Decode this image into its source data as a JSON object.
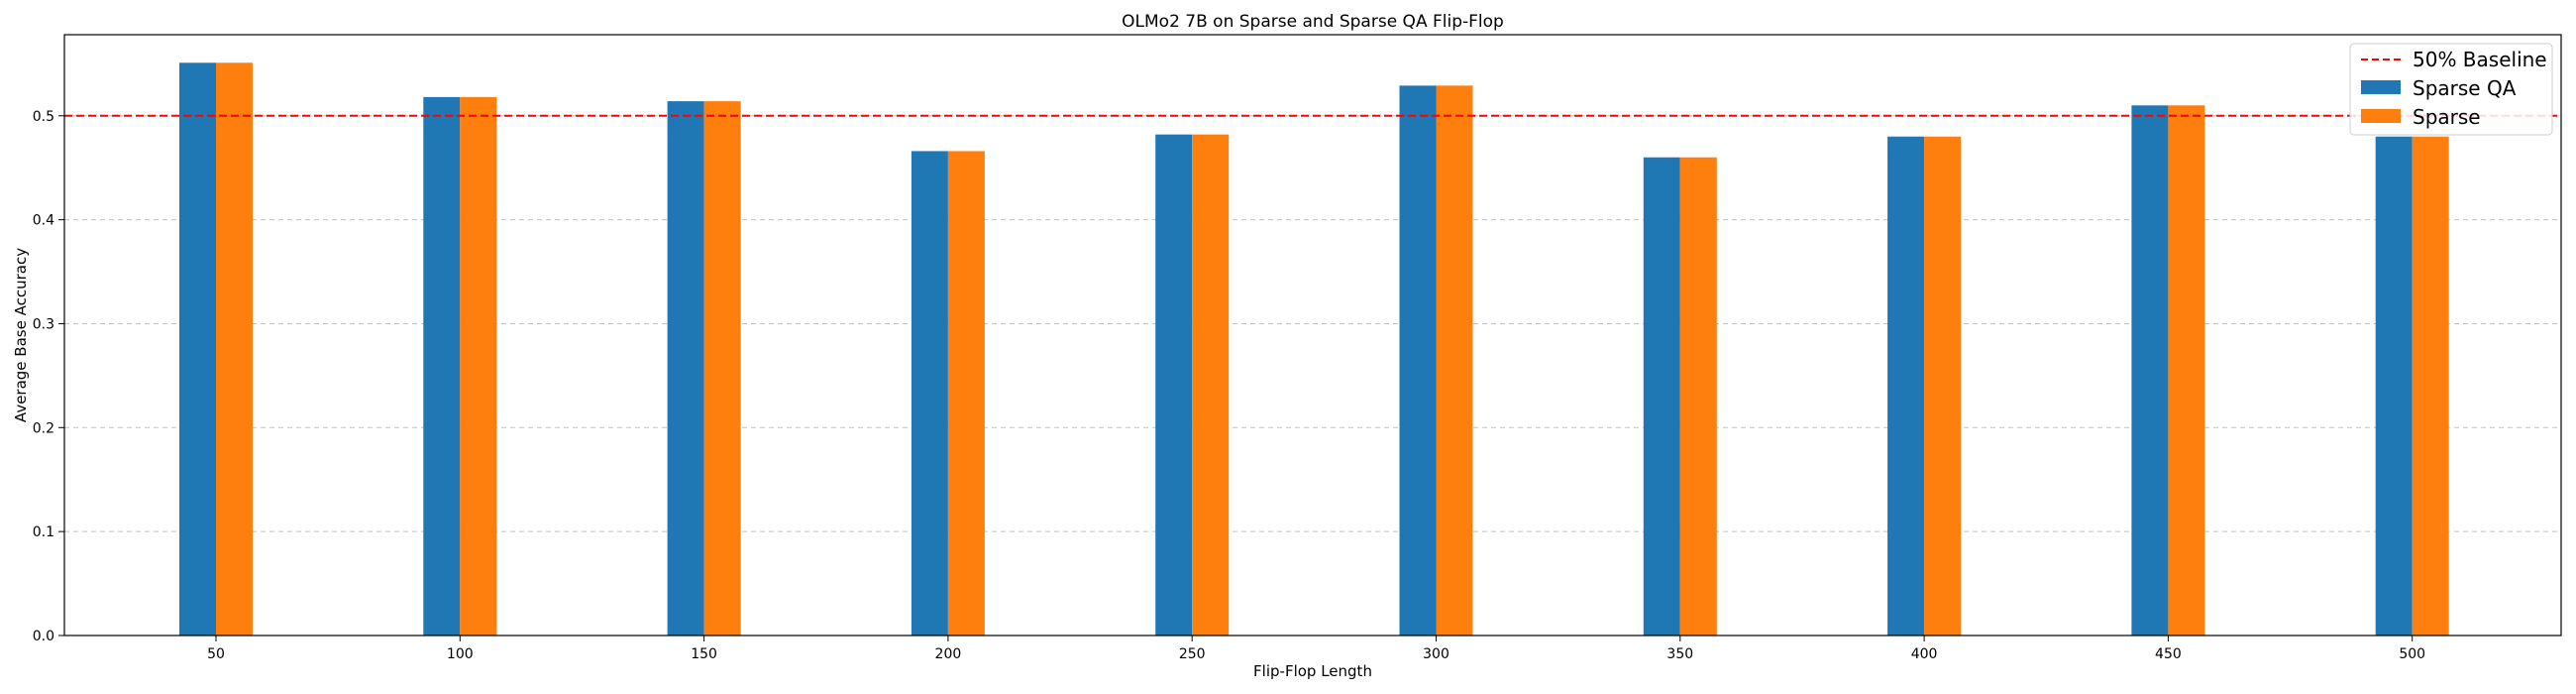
{
  "chart_data": {
    "type": "bar",
    "title": "OLMo2 7B on Sparse and Sparse QA Flip-Flop",
    "xlabel": "Flip-Flop Length",
    "ylabel": "Average Base Accuracy",
    "categories": [
      "50",
      "100",
      "150",
      "200",
      "250",
      "300",
      "350",
      "400",
      "450",
      "500"
    ],
    "series": [
      {
        "name": "Sparse QA",
        "color": "#1f77b4",
        "values": [
          0.551,
          0.518,
          0.514,
          0.466,
          0.482,
          0.529,
          0.46,
          0.48,
          0.51,
          0.48
        ]
      },
      {
        "name": "Sparse",
        "color": "#ff7f0e",
        "values": [
          0.551,
          0.518,
          0.514,
          0.466,
          0.482,
          0.529,
          0.46,
          0.48,
          0.51,
          0.48
        ]
      }
    ],
    "ylim": [
      0,
      0.578
    ],
    "yticks": [
      "0.0",
      "0.1",
      "0.2",
      "0.3",
      "0.4",
      "0.5"
    ],
    "baseline": {
      "name": "50% Baseline",
      "value": 0.5,
      "color": "#ff0000"
    },
    "grid": "y-dashed",
    "legend": "top-right"
  }
}
